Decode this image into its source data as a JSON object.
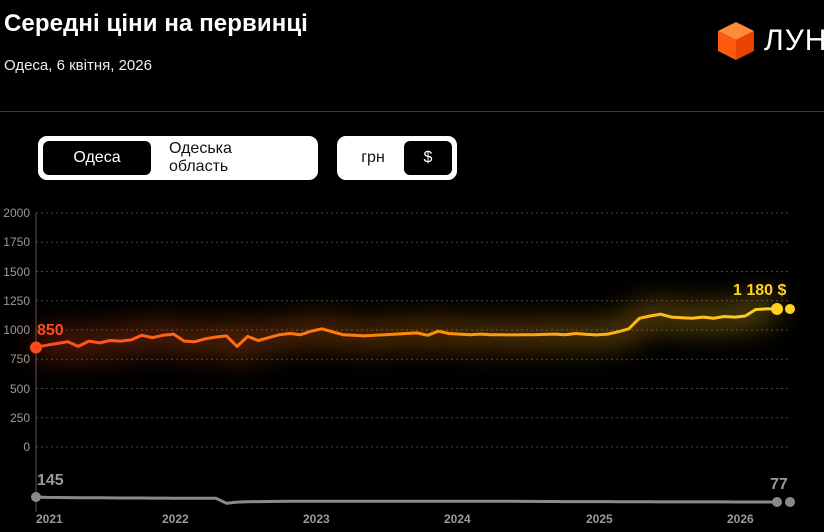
{
  "header": {
    "title": "Середні ціни на первинці",
    "subtitle": "Одеса, 6 квітня, 2026"
  },
  "logo": {
    "text": "ЛУН"
  },
  "location_toggle": {
    "options": [
      "Одеса",
      "Одеська область"
    ],
    "active": 0
  },
  "currency_toggle": {
    "options": [
      "грн",
      "$"
    ],
    "active": 1
  },
  "colors": {
    "start": "#ff4a1c",
    "mid": "#ff8a00",
    "end": "#ffd21f",
    "secondary": "#8a8a8a",
    "logo": "#ff6a1a"
  },
  "chart_data": [
    {
      "type": "line",
      "ylim": [
        0,
        2000
      ],
      "yticks": [
        "2000",
        "1750",
        "1500",
        "1250",
        "1000",
        "750",
        "500",
        "250",
        "0"
      ],
      "x_ticks": [
        "2021",
        "2022",
        "2023",
        "2024",
        "2025",
        "2026"
      ],
      "start_label": "850",
      "end_label": "1 180 $",
      "values": [
        850,
        870,
        885,
        900,
        860,
        905,
        890,
        910,
        905,
        915,
        955,
        935,
        955,
        965,
        905,
        900,
        925,
        940,
        950,
        860,
        945,
        910,
        935,
        960,
        970,
        960,
        990,
        1010,
        985,
        960,
        955,
        950,
        955,
        960,
        965,
        970,
        975,
        955,
        990,
        970,
        965,
        960,
        965,
        960,
        960,
        958,
        960,
        960,
        962,
        965,
        960,
        970,
        962,
        958,
        965,
        985,
        1010,
        1100,
        1120,
        1135,
        1110,
        1105,
        1100,
        1110,
        1100,
        1115,
        1110,
        1120,
        1175,
        1180,
        1180
      ]
    },
    {
      "type": "line",
      "start_label": "145",
      "end_label": "77",
      "values": [
        145,
        140,
        138,
        137,
        136,
        135,
        134,
        133,
        132,
        131,
        131,
        130,
        130,
        129,
        128,
        128,
        127,
        127,
        60,
        75,
        80,
        82,
        84,
        85,
        86,
        86,
        87,
        87,
        87,
        88,
        88,
        88,
        88,
        88,
        88,
        88,
        88,
        88,
        88,
        88,
        88,
        87,
        87,
        87,
        86,
        86,
        85,
        85,
        84,
        84,
        83,
        83,
        82,
        82,
        82,
        81,
        81,
        80,
        80,
        79,
        79,
        79,
        78,
        78,
        78,
        78,
        77,
        77,
        77,
        77,
        77
      ]
    }
  ]
}
